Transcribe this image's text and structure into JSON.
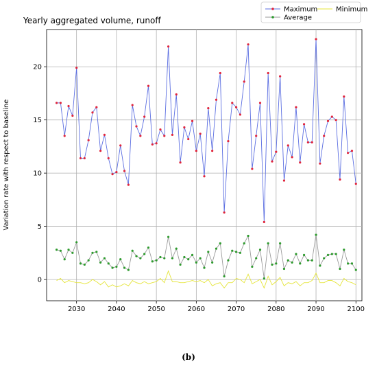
{
  "caption": "(b)",
  "chart_data": {
    "type": "line",
    "title": "Yearly aggregated volume, runoff",
    "xlabel": "",
    "ylabel": "Variation rate with respect to baseline",
    "xlim": [
      2022.5,
      2101.5
    ],
    "ylim": [
      -2.0,
      23.5
    ],
    "x_ticks": [
      2030,
      2040,
      2050,
      2060,
      2070,
      2080,
      2090,
      2100
    ],
    "y_ticks": [
      0,
      5,
      10,
      15,
      20
    ],
    "grid": true,
    "legend_position": "top-right",
    "legend_columns": 2,
    "x": [
      2025,
      2026,
      2027,
      2028,
      2029,
      2030,
      2031,
      2032,
      2033,
      2034,
      2035,
      2036,
      2037,
      2038,
      2039,
      2040,
      2041,
      2042,
      2043,
      2044,
      2045,
      2046,
      2047,
      2048,
      2049,
      2050,
      2051,
      2052,
      2053,
      2054,
      2055,
      2056,
      2057,
      2058,
      2059,
      2060,
      2061,
      2062,
      2063,
      2064,
      2065,
      2066,
      2067,
      2068,
      2069,
      2070,
      2071,
      2072,
      2073,
      2074,
      2075,
      2076,
      2077,
      2078,
      2079,
      2080,
      2081,
      2082,
      2083,
      2084,
      2085,
      2086,
      2087,
      2088,
      2089,
      2090,
      2091,
      2092,
      2093,
      2094,
      2095,
      2096,
      2097,
      2098,
      2099,
      2100
    ],
    "series": [
      {
        "name": "Maximum",
        "color": "#5b6ee1",
        "marker_color": "#e0253c",
        "values": [
          16.6,
          16.6,
          13.5,
          16.3,
          15.4,
          19.9,
          11.4,
          11.4,
          13.1,
          15.7,
          16.2,
          12.1,
          13.6,
          11.4,
          9.9,
          10.1,
          12.6,
          10.2,
          8.9,
          16.4,
          14.4,
          13.5,
          15.3,
          18.2,
          12.7,
          12.8,
          14.1,
          13.5,
          21.9,
          13.6,
          17.4,
          11.0,
          14.3,
          13.2,
          14.9,
          12.1,
          13.7,
          9.7,
          16.1,
          12.1,
          16.9,
          19.4,
          6.3,
          13.0,
          16.6,
          16.2,
          15.5,
          18.6,
          22.1,
          10.4,
          13.5,
          16.6,
          5.4,
          19.4,
          11.1,
          12.0,
          19.1,
          9.3,
          12.6,
          11.5,
          16.2,
          11.0,
          14.6,
          12.9,
          12.9,
          22.6,
          10.9,
          13.5,
          14.9,
          15.3,
          15.0,
          9.4,
          17.2,
          11.9,
          12.1,
          9.0
        ]
      },
      {
        "name": "Average",
        "color": "#9a9a9a",
        "marker_color": "#2e9b2e",
        "values": [
          2.8,
          2.7,
          1.9,
          2.8,
          2.5,
          3.5,
          1.5,
          1.4,
          1.8,
          2.5,
          2.6,
          1.6,
          2.0,
          1.5,
          1.1,
          1.2,
          1.9,
          1.1,
          0.9,
          2.7,
          2.2,
          2.0,
          2.4,
          3.0,
          1.7,
          1.8,
          2.1,
          2.0,
          4.0,
          2.0,
          2.9,
          1.4,
          2.1,
          1.9,
          2.3,
          1.6,
          2.0,
          1.1,
          2.6,
          1.6,
          2.9,
          3.4,
          0.3,
          1.8,
          2.7,
          2.6,
          2.5,
          3.4,
          4.1,
          1.2,
          2.0,
          2.8,
          0.1,
          3.4,
          1.4,
          1.5,
          3.4,
          1.0,
          1.8,
          1.6,
          2.4,
          1.5,
          2.3,
          1.8,
          1.8,
          4.2,
          1.3,
          2.0,
          2.3,
          2.4,
          2.4,
          1.0,
          2.8,
          1.5,
          1.5,
          0.9
        ]
      },
      {
        "name": "Minimum",
        "color": "#e5e53a",
        "values": [
          -0.1,
          0.1,
          -0.3,
          -0.1,
          -0.2,
          -0.3,
          -0.3,
          -0.4,
          -0.3,
          0.0,
          -0.2,
          -0.5,
          -0.2,
          -0.7,
          -0.5,
          -0.7,
          -0.6,
          -0.4,
          -0.6,
          -0.1,
          -0.3,
          -0.4,
          -0.2,
          -0.4,
          -0.3,
          -0.2,
          0.1,
          -0.3,
          0.8,
          -0.2,
          -0.2,
          -0.3,
          -0.3,
          -0.2,
          -0.1,
          -0.2,
          -0.1,
          -0.3,
          0.0,
          -0.6,
          -0.4,
          -0.3,
          -0.8,
          -0.3,
          -0.3,
          0.1,
          0.0,
          -0.3,
          0.5,
          -0.4,
          -0.2,
          0.0,
          -0.8,
          0.3,
          -0.5,
          -0.2,
          0.2,
          -0.6,
          -0.3,
          -0.4,
          -0.2,
          -0.6,
          -0.3,
          -0.3,
          -0.1,
          0.6,
          -0.3,
          -0.3,
          -0.1,
          -0.1,
          -0.3,
          -0.6,
          0.1,
          -0.2,
          -0.3,
          -0.5
        ]
      }
    ]
  }
}
